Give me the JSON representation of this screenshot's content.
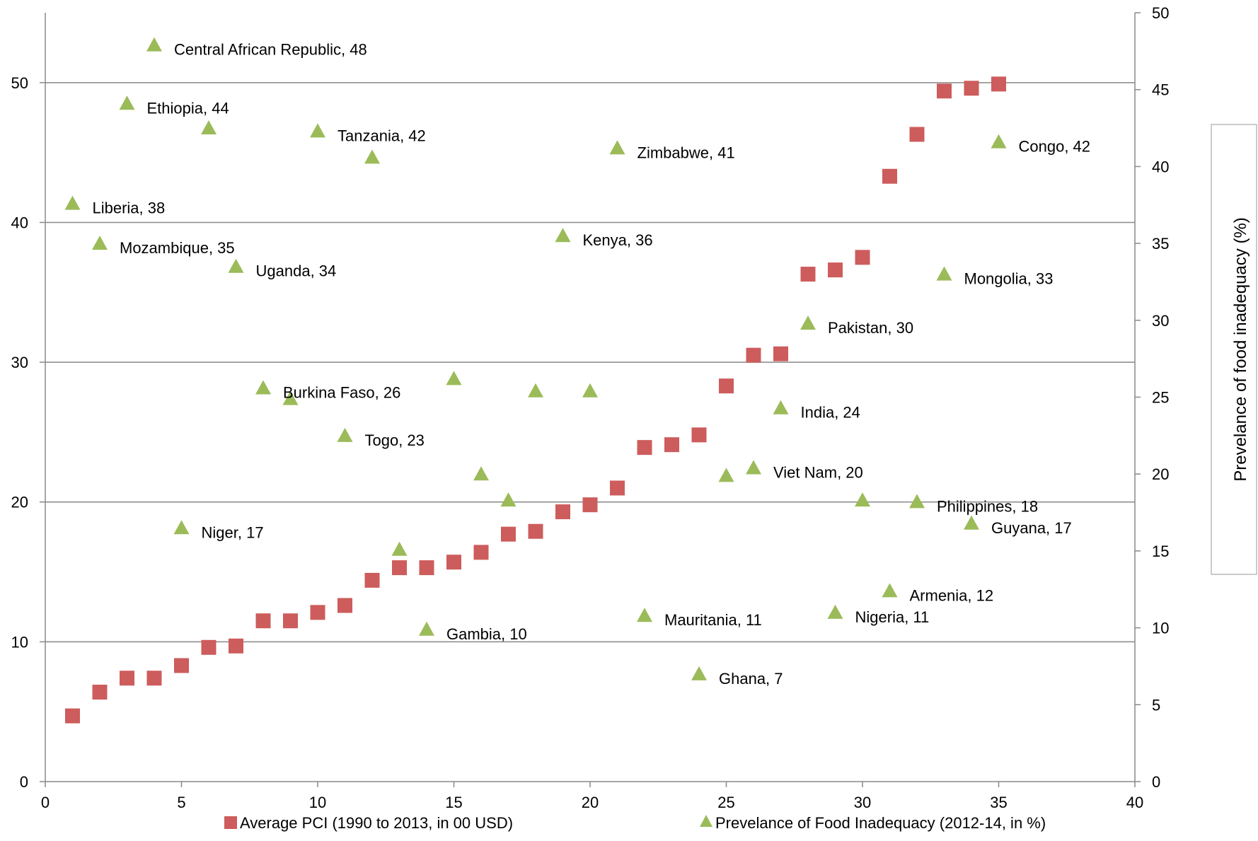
{
  "chart_data": {
    "type": "scatter",
    "xlim": [
      0,
      40
    ],
    "ylim": [
      0,
      55
    ],
    "y2lim": [
      0,
      50
    ],
    "xticks": [
      0,
      5,
      10,
      15,
      20,
      25,
      30,
      35,
      40
    ],
    "yticks": [
      0,
      10,
      20,
      30,
      40,
      50
    ],
    "y2ticks": [
      0,
      5,
      10,
      15,
      20,
      25,
      30,
      35,
      40,
      45,
      50
    ],
    "y2label": "Prevelance of food inadequacy (%)",
    "grid": "horizontal",
    "legend_position": "bottom",
    "series": [
      {
        "name": "Average PCI (1990 to 2013, in 00 USD)",
        "marker": "square",
        "color": "#cd5c5c",
        "axis": "left",
        "points": [
          {
            "x": 1,
            "y": 4.7
          },
          {
            "x": 2,
            "y": 6.4
          },
          {
            "x": 3,
            "y": 7.4
          },
          {
            "x": 4,
            "y": 7.4
          },
          {
            "x": 5,
            "y": 8.3
          },
          {
            "x": 6,
            "y": 9.6
          },
          {
            "x": 7,
            "y": 9.7
          },
          {
            "x": 8,
            "y": 11.5
          },
          {
            "x": 9,
            "y": 11.5
          },
          {
            "x": 10,
            "y": 12.1
          },
          {
            "x": 11,
            "y": 12.6
          },
          {
            "x": 12,
            "y": 14.4
          },
          {
            "x": 13,
            "y": 15.3
          },
          {
            "x": 14,
            "y": 15.3
          },
          {
            "x": 15,
            "y": 15.7
          },
          {
            "x": 16,
            "y": 16.4
          },
          {
            "x": 17,
            "y": 17.7
          },
          {
            "x": 18,
            "y": 17.9
          },
          {
            "x": 19,
            "y": 19.3
          },
          {
            "x": 20,
            "y": 19.8
          },
          {
            "x": 21,
            "y": 21.0
          },
          {
            "x": 22,
            "y": 23.9
          },
          {
            "x": 23,
            "y": 24.1
          },
          {
            "x": 24,
            "y": 24.8
          },
          {
            "x": 25,
            "y": 28.3
          },
          {
            "x": 26,
            "y": 30.5
          },
          {
            "x": 27,
            "y": 30.6
          },
          {
            "x": 28,
            "y": 36.3
          },
          {
            "x": 29,
            "y": 36.6
          },
          {
            "x": 30,
            "y": 37.5
          },
          {
            "x": 31,
            "y": 43.3
          },
          {
            "x": 32,
            "y": 46.3
          },
          {
            "x": 33,
            "y": 49.4
          },
          {
            "x": 34,
            "y": 49.6
          },
          {
            "x": 35,
            "y": 49.9
          }
        ]
      },
      {
        "name": "Prevelance of Food Inadequacy (2012-14, in %)",
        "marker": "triangle",
        "color": "#9bbb59",
        "axis": "right",
        "points": [
          {
            "x": 1,
            "y": 37.6,
            "label": "Liberia, 38"
          },
          {
            "x": 2,
            "y": 35.0,
            "label": "Mozambique, 35"
          },
          {
            "x": 3,
            "y": 44.1,
            "label": "Ethiopia, 44"
          },
          {
            "x": 4,
            "y": 47.9,
            "label": "Central African Republic, 48"
          },
          {
            "x": 5,
            "y": 16.5,
            "label": "Niger, 17"
          },
          {
            "x": 6,
            "y": 42.5,
            "label": ""
          },
          {
            "x": 7,
            "y": 33.5,
            "label": "Uganda, 34"
          },
          {
            "x": 8,
            "y": 25.6,
            "label": "Burkina Faso, 26"
          },
          {
            "x": 9,
            "y": 24.9,
            "label": ""
          },
          {
            "x": 10,
            "y": 42.3,
            "label": "Tanzania, 42"
          },
          {
            "x": 11,
            "y": 22.5,
            "label": "Togo, 23"
          },
          {
            "x": 12,
            "y": 40.6,
            "label": ""
          },
          {
            "x": 13,
            "y": 15.1,
            "label": ""
          },
          {
            "x": 14,
            "y": 9.9,
            "label": "Gambia, 10"
          },
          {
            "x": 15,
            "y": 26.2,
            "label": ""
          },
          {
            "x": 16,
            "y": 20.0,
            "label": ""
          },
          {
            "x": 17,
            "y": 18.3,
            "label": ""
          },
          {
            "x": 18,
            "y": 25.4,
            "label": ""
          },
          {
            "x": 19,
            "y": 35.5,
            "label": "Kenya, 36"
          },
          {
            "x": 20,
            "y": 25.4,
            "label": ""
          },
          {
            "x": 21,
            "y": 41.2,
            "label": "Zimbabwe, 41"
          },
          {
            "x": 22,
            "y": 10.8,
            "label": "Mauritania, 11"
          },
          {
            "x": 24,
            "y": 7.0,
            "label": "Ghana, 7"
          },
          {
            "x": 25,
            "y": 19.9,
            "label": ""
          },
          {
            "x": 26,
            "y": 20.4,
            "label": "Viet Nam, 20"
          },
          {
            "x": 27,
            "y": 24.3,
            "label": "India, 24"
          },
          {
            "x": 28,
            "y": 29.8,
            "label": "Pakistan, 30"
          },
          {
            "x": 29,
            "y": 11.0,
            "label": "Nigeria, 11"
          },
          {
            "x": 30,
            "y": 18.3,
            "label": ""
          },
          {
            "x": 31,
            "y": 12.4,
            "label": "Armenia, 12"
          },
          {
            "x": 32,
            "y": 18.2,
            "label": "Philippines, 18"
          },
          {
            "x": 33,
            "y": 33.0,
            "label": "Mongolia, 33"
          },
          {
            "x": 34,
            "y": 16.8,
            "label": "Guyana, 17"
          },
          {
            "x": 35,
            "y": 41.6,
            "label": "Congo, 42"
          }
        ]
      }
    ]
  }
}
